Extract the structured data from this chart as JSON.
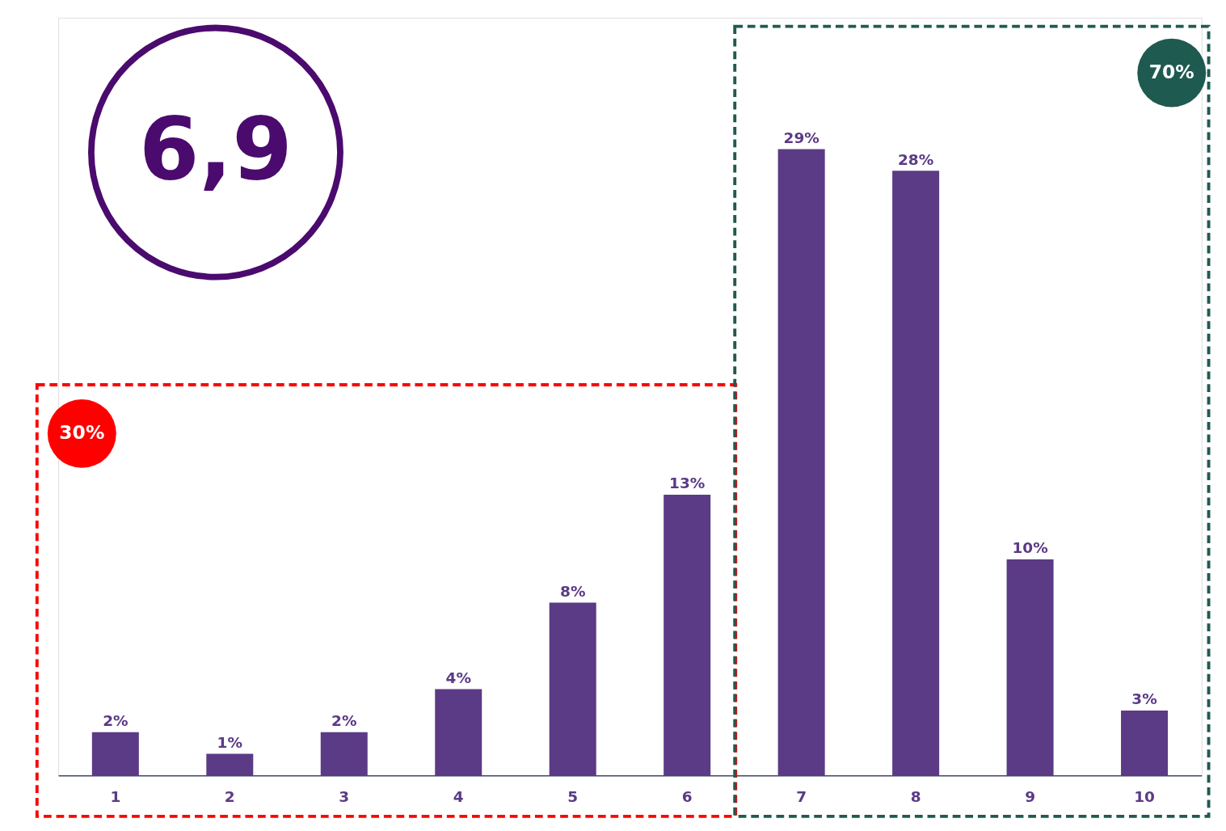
{
  "chart_data": {
    "type": "bar",
    "categories": [
      "1",
      "2",
      "3",
      "4",
      "5",
      "6",
      "7",
      "8",
      "9",
      "10"
    ],
    "values": [
      2,
      1,
      2,
      4,
      8,
      13,
      29,
      28,
      10,
      3
    ],
    "color": "#5b3a86",
    "grid": false,
    "tick_labels": "x",
    "value_labels": [
      "2%",
      "1%",
      "2%",
      "4%",
      "8%",
      "13%",
      "29%",
      "28%",
      "10%",
      "3%"
    ],
    "annotations": [
      "6,9",
      "30%",
      "70%"
    ]
  }
}
